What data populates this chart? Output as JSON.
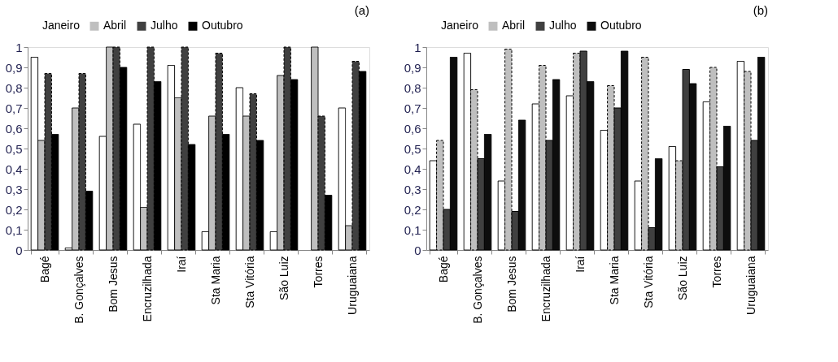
{
  "chart_data": [
    {
      "type": "bar",
      "title": "(a)",
      "legend": "top",
      "grid": false,
      "categories": [
        "Bagé",
        "B. Gonçalves",
        "Bom Jesus",
        "Encruzilhada",
        "Iraí",
        "Sta Maria",
        "Sta Vitória",
        "São Luiz",
        "Torres",
        "Uruguaiana"
      ],
      "ylim": [
        0,
        1
      ],
      "yticks": [
        0,
        {
          "value": 0.1,
          "label": "0,1"
        },
        {
          "value": 0.2,
          "label": "0,2"
        },
        {
          "value": 0.3,
          "label": "0,3"
        },
        {
          "value": 0.4,
          "label": "0,4"
        },
        {
          "value": 0.5,
          "label": "0,5"
        },
        {
          "value": 0.6,
          "label": "0,6"
        },
        {
          "value": 0.7,
          "label": "0,7"
        },
        {
          "value": 0.8,
          "label": "0,8"
        },
        {
          "value": 0.9,
          "label": "0,9"
        },
        1
      ],
      "series": [
        {
          "name": "Janeiro",
          "color": "#ffffff",
          "values": [
            0.95,
            0.01,
            0.56,
            0.62,
            0.91,
            0.09,
            0.8,
            0.09,
            null,
            0.7
          ]
        },
        {
          "name": "Abril",
          "color": "#bfbfbf",
          "values": [
            0.54,
            0.7,
            1.0,
            0.21,
            0.75,
            0.66,
            0.66,
            0.86,
            1.0,
            0.12
          ]
        },
        {
          "name": "Julho",
          "color": "#404040",
          "line_style": "dashed",
          "values": [
            0.87,
            0.87,
            1.0,
            1.0,
            1.0,
            0.97,
            0.77,
            1.0,
            0.66,
            0.93
          ]
        },
        {
          "name": "Outubro",
          "color": "#000000",
          "values": [
            0.57,
            0.29,
            0.9,
            0.83,
            0.52,
            0.57,
            0.54,
            0.84,
            0.27,
            0.88
          ]
        }
      ]
    },
    {
      "type": "bar",
      "title": "(b)",
      "legend": "top",
      "grid": false,
      "categories": [
        "Bagé",
        "B. Gonçalves",
        "Bom Jesus",
        "Encruzilhada",
        "Iraí",
        "Sta Maria",
        "Sta Vitória",
        "São Luiz",
        "Torres",
        "Uruguaiana"
      ],
      "ylim": [
        0,
        1
      ],
      "yticks": [
        0,
        {
          "value": 0.1,
          "label": "0,1"
        },
        {
          "value": 0.2,
          "label": "0,2"
        },
        {
          "value": 0.3,
          "label": "0,3"
        },
        {
          "value": 0.4,
          "label": "0,4"
        },
        {
          "value": 0.5,
          "label": "0,5"
        },
        {
          "value": 0.6,
          "label": "0,6"
        },
        {
          "value": 0.7,
          "label": "0,7"
        },
        {
          "value": 0.8,
          "label": "0,8"
        },
        {
          "value": 0.9,
          "label": "0,9"
        },
        1
      ],
      "series": [
        {
          "name": "Janeiro",
          "color": "#ffffff",
          "values": [
            0.44,
            0.97,
            0.34,
            0.72,
            0.76,
            0.59,
            0.34,
            0.51,
            0.73,
            0.93
          ]
        },
        {
          "name": "Abril",
          "color": "#bfbfbf",
          "line_style": "dashed",
          "values": [
            0.54,
            0.79,
            0.99,
            0.91,
            0.97,
            0.81,
            0.95,
            0.44,
            0.9,
            0.88
          ]
        },
        {
          "name": "Julho",
          "color": "#404040",
          "values": [
            0.2,
            0.45,
            0.19,
            0.54,
            0.98,
            0.7,
            0.11,
            0.89,
            0.41,
            0.54
          ]
        },
        {
          "name": "Outubro",
          "color": "#0d0d0d",
          "values": [
            0.95,
            0.57,
            0.64,
            0.84,
            0.83,
            0.98,
            0.45,
            0.82,
            0.61,
            0.95
          ]
        }
      ]
    }
  ]
}
